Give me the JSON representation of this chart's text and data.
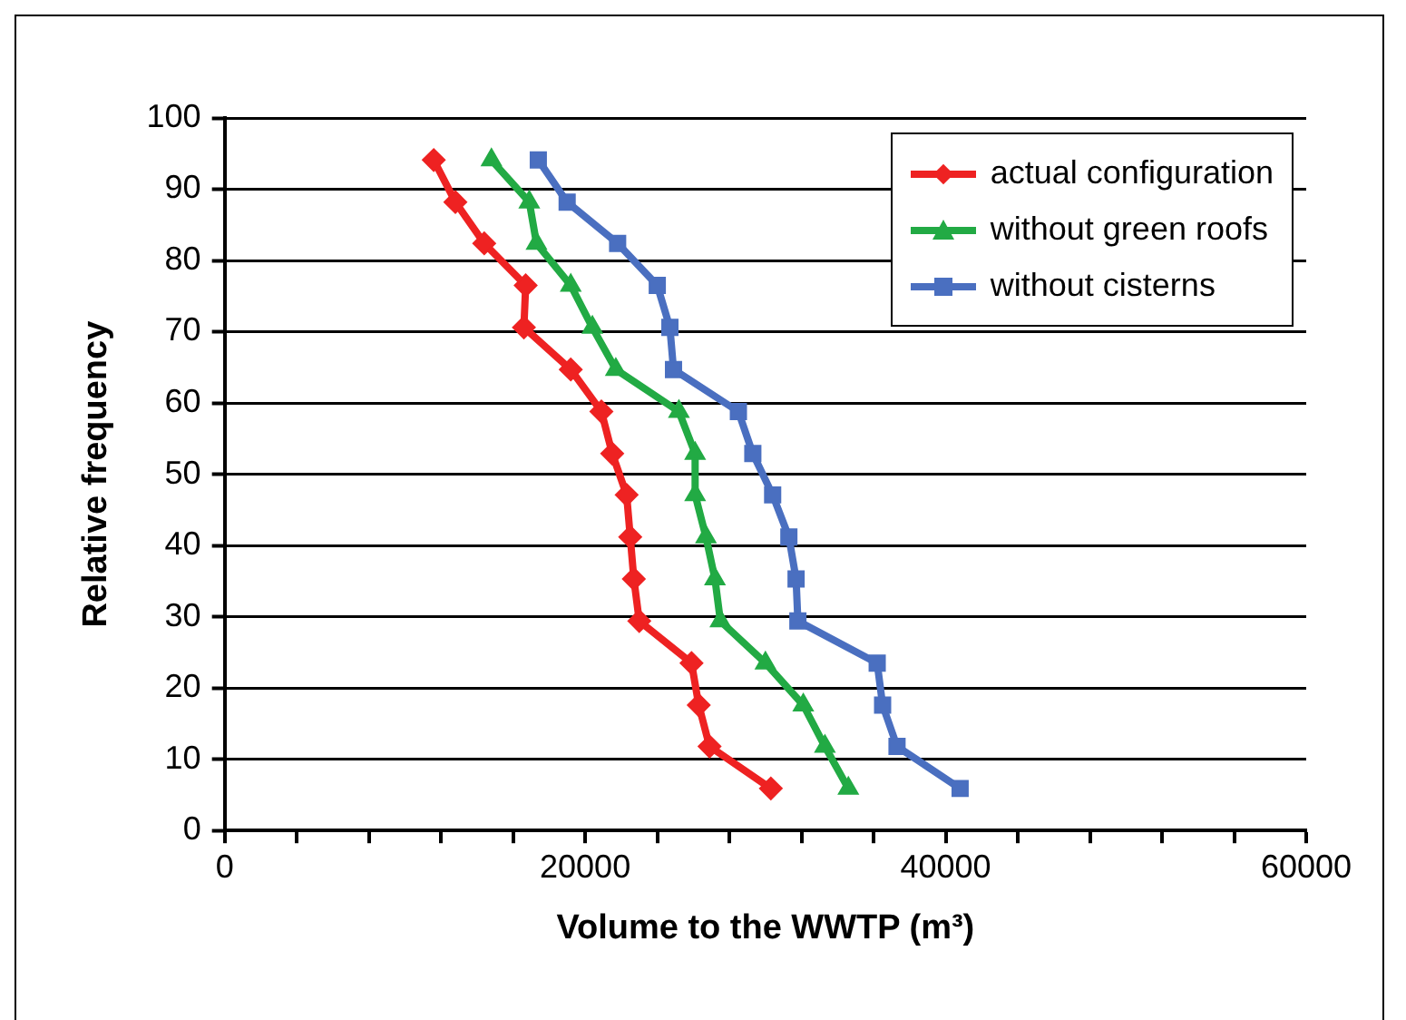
{
  "chart_data": {
    "type": "line",
    "xlabel": "Volume to the WWTP (m³)",
    "ylabel": "Relative frequency",
    "xlim": [
      0,
      60000
    ],
    "xticks": [
      0,
      {
        "value": 4000,
        "label": null
      },
      {
        "value": 8000,
        "label": null
      },
      {
        "value": 12000,
        "label": null
      },
      {
        "value": 16000,
        "label": null
      },
      20000,
      {
        "value": 24000,
        "label": null
      },
      {
        "value": 28000,
        "label": null
      },
      {
        "value": 32000,
        "label": null
      },
      {
        "value": 36000,
        "label": null
      },
      40000,
      {
        "value": 44000,
        "label": null
      },
      {
        "value": 48000,
        "label": null
      },
      {
        "value": 52000,
        "label": null
      },
      {
        "value": 56000,
        "label": null
      },
      60000
    ],
    "ylim": [
      0,
      100
    ],
    "yticks": [
      0,
      10,
      20,
      30,
      40,
      50,
      60,
      70,
      80,
      90,
      100
    ],
    "grid": "y",
    "legend": "top right",
    "line_style": "solid",
    "series": [
      {
        "name": "actual configuration",
        "color": "#ee2222",
        "marker": "diamond",
        "x": [
          11600,
          12800,
          14400,
          16700,
          16600,
          19200,
          20900,
          21500,
          22300,
          22500,
          22700,
          23000,
          25900,
          26300,
          26900,
          30300
        ],
        "values": [
          94.1,
          88.2,
          82.4,
          76.5,
          70.6,
          64.7,
          58.8,
          52.9,
          47.1,
          41.2,
          35.3,
          29.4,
          23.5,
          17.6,
          11.8,
          5.9
        ]
      },
      {
        "name": "without green roofs",
        "color": "#22aa44",
        "marker": "triangle",
        "x": [
          14800,
          16900,
          17300,
          19200,
          20400,
          21700,
          25200,
          26100,
          26100,
          26700,
          27200,
          27500,
          30000,
          32100,
          33300,
          34600
        ],
        "values": [
          94.1,
          88.2,
          82.4,
          76.5,
          70.6,
          64.7,
          58.8,
          52.9,
          47.1,
          41.2,
          35.3,
          29.4,
          23.5,
          17.6,
          11.8,
          5.9
        ]
      },
      {
        "name": "without cisterns",
        "color": "#4a6fc0",
        "marker": "square",
        "x": [
          17400,
          19000,
          21800,
          24000,
          24700,
          24900,
          28500,
          29300,
          30400,
          31300,
          31700,
          31800,
          36200,
          36500,
          37300,
          40800
        ],
        "values": [
          94.1,
          88.2,
          82.4,
          76.5,
          70.6,
          64.7,
          58.8,
          52.9,
          47.1,
          41.2,
          35.3,
          29.4,
          23.5,
          17.6,
          11.8,
          5.9
        ]
      }
    ]
  }
}
